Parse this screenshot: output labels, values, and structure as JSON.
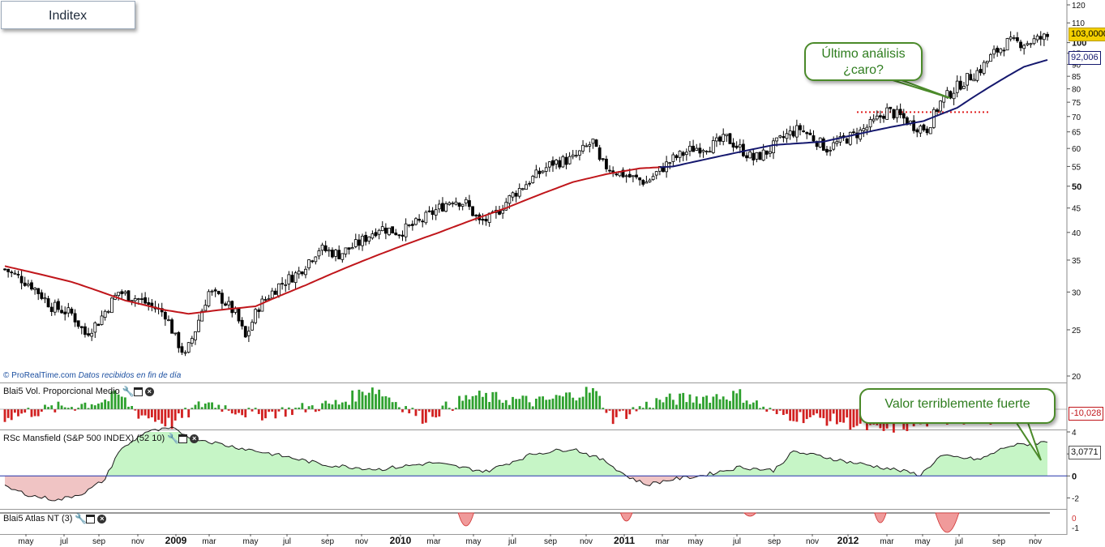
{
  "title": "Inditex",
  "watermark": {
    "brand": "ProRealTime.com",
    "note": "Datos recibidos en fin de día"
  },
  "panels": {
    "volume": {
      "label": "Blai5 Vol. Proporcional Medio",
      "value_tag": "-10,028"
    },
    "rsc": {
      "label": "RSc Mansfield (S&P 500 INDEX) (52 10)",
      "value_tag": "3,0771"
    },
    "atlas": {
      "label": "Blai5 Atlas NT (3)"
    }
  },
  "annotations": {
    "ultimo": {
      "line1": "Último análisis",
      "line2": "¿caro?"
    },
    "fuerte": {
      "text": "Valor terriblemente fuerte"
    }
  },
  "price_tags": {
    "last": "103,0000",
    "ma": "92,006"
  },
  "colors": {
    "up_body": "#ffffff",
    "down_body": "#000000",
    "ma_red": "#c0161b",
    "ma_blue": "#15186e",
    "vol_up": "#2ea12e",
    "vol_down": "#d22020",
    "rsc_pos": "#c6f5c6",
    "rsc_neg": "#f0c4c4",
    "callout_green": "#2f7d1f",
    "resistance": "#e02020"
  },
  "chart_data": {
    "type": "candlestick",
    "x_ticks": [
      "may",
      "jul",
      "sep",
      "nov",
      "2009",
      "mar",
      "may",
      "jul",
      "sep",
      "nov",
      "2010",
      "mar",
      "may",
      "jul",
      "sep",
      "nov",
      "2011",
      "mar",
      "may",
      "jul",
      "sep",
      "nov",
      "2012",
      "mar",
      "may",
      "jul",
      "sep",
      "nov"
    ],
    "y_ticks": [
      20,
      25,
      30,
      35,
      40,
      45,
      50,
      55,
      60,
      65,
      70,
      75,
      80,
      85,
      90,
      95,
      100,
      110,
      120
    ],
    "y_scale": "log",
    "ylim": [
      20,
      120
    ],
    "price_anchors": [
      [
        0,
        33.5
      ],
      [
        8,
        31
      ],
      [
        14,
        28
      ],
      [
        20,
        27
      ],
      [
        24,
        24.5
      ],
      [
        28,
        26
      ],
      [
        34,
        30
      ],
      [
        40,
        29
      ],
      [
        44,
        28
      ],
      [
        48,
        27
      ],
      [
        51,
        24
      ],
      [
        54,
        22
      ],
      [
        57,
        25
      ],
      [
        61,
        30
      ],
      [
        65,
        29
      ],
      [
        69,
        27
      ],
      [
        72,
        24
      ],
      [
        76,
        28
      ],
      [
        82,
        31
      ],
      [
        88,
        33
      ],
      [
        94,
        37
      ],
      [
        100,
        36
      ],
      [
        106,
        38
      ],
      [
        112,
        41
      ],
      [
        118,
        40
      ],
      [
        124,
        42
      ],
      [
        130,
        45
      ],
      [
        134,
        47
      ],
      [
        138,
        46
      ],
      [
        142,
        42
      ],
      [
        146,
        43
      ],
      [
        152,
        48
      ],
      [
        158,
        52
      ],
      [
        164,
        56
      ],
      [
        170,
        57
      ],
      [
        176,
        62
      ],
      [
        178,
        56
      ],
      [
        182,
        54
      ],
      [
        188,
        52
      ],
      [
        192,
        51
      ],
      [
        196,
        54
      ],
      [
        200,
        57
      ],
      [
        206,
        60
      ],
      [
        212,
        61
      ],
      [
        216,
        63
      ],
      [
        220,
        60
      ],
      [
        224,
        57
      ],
      [
        228,
        59
      ],
      [
        234,
        64
      ],
      [
        238,
        66
      ],
      [
        242,
        63
      ],
      [
        246,
        60
      ],
      [
        250,
        62
      ],
      [
        256,
        65
      ],
      [
        260,
        68
      ],
      [
        264,
        72
      ],
      [
        268,
        70
      ],
      [
        272,
        67
      ],
      [
        276,
        66
      ],
      [
        280,
        75
      ],
      [
        286,
        82
      ],
      [
        292,
        88
      ],
      [
        296,
        95
      ],
      [
        300,
        100
      ],
      [
        306,
        100
      ],
      [
        312,
        103
      ]
    ],
    "ma_anchors": [
      [
        0,
        34
      ],
      [
        20,
        31.5
      ],
      [
        36,
        28.8
      ],
      [
        48,
        27.5
      ],
      [
        55,
        27.0
      ],
      [
        64,
        27.5
      ],
      [
        75,
        28
      ],
      [
        90,
        31
      ],
      [
        110,
        35.5
      ],
      [
        130,
        40
      ],
      [
        150,
        45
      ],
      [
        170,
        51
      ],
      [
        180,
        53
      ],
      [
        190,
        54.5
      ],
      [
        200,
        55
      ],
      [
        210,
        57
      ],
      [
        220,
        59
      ],
      [
        230,
        61
      ],
      [
        245,
        62
      ],
      [
        265,
        66.5
      ],
      [
        275,
        68.5
      ],
      [
        285,
        73
      ],
      [
        295,
        81
      ],
      [
        305,
        89
      ],
      [
        312,
        92
      ]
    ],
    "ma_red_until": 196,
    "resistance_level": 71.5,
    "volume_anchors": [
      [
        0,
        -0.5
      ],
      [
        30,
        0.6
      ],
      [
        34,
        1.0
      ],
      [
        40,
        -0.3
      ],
      [
        50,
        -1.0
      ],
      [
        60,
        0.5
      ],
      [
        75,
        -0.4
      ],
      [
        100,
        0.4
      ],
      [
        110,
        1.5
      ],
      [
        125,
        -0.6
      ],
      [
        140,
        0.9
      ],
      [
        160,
        0.5
      ],
      [
        176,
        1.3
      ],
      [
        182,
        -0.6
      ],
      [
        196,
        0.6
      ],
      [
        220,
        1.0
      ],
      [
        230,
        -0.3
      ],
      [
        250,
        -0.8
      ],
      [
        262,
        -1.5
      ],
      [
        280,
        -0.7
      ],
      [
        312,
        -0.5
      ]
    ],
    "rsc_anchors": [
      [
        0,
        -1.0
      ],
      [
        8,
        -1.8
      ],
      [
        16,
        -2.2
      ],
      [
        24,
        -1.5
      ],
      [
        30,
        -0.3
      ],
      [
        34,
        2.2
      ],
      [
        42,
        4.0
      ],
      [
        50,
        4.3
      ],
      [
        56,
        3.5
      ],
      [
        66,
        2.8
      ],
      [
        80,
        2.0
      ],
      [
        96,
        1.0
      ],
      [
        112,
        0.6
      ],
      [
        128,
        1.2
      ],
      [
        144,
        0.4
      ],
      [
        158,
        2.0
      ],
      [
        170,
        2.5
      ],
      [
        180,
        1.3
      ],
      [
        186,
        0
      ],
      [
        192,
        -0.8
      ],
      [
        200,
        -0.3
      ],
      [
        208,
        0
      ],
      [
        220,
        0.8
      ],
      [
        230,
        0.5
      ],
      [
        236,
        2.2
      ],
      [
        244,
        1.8
      ],
      [
        252,
        1.3
      ],
      [
        266,
        0.6
      ],
      [
        274,
        0.1
      ],
      [
        280,
        1.8
      ],
      [
        292,
        1.5
      ],
      [
        300,
        2.7
      ],
      [
        312,
        3.1
      ]
    ],
    "rsc_ylim": [
      -3,
      4
    ],
    "rsc_ticks": [
      4,
      2,
      0,
      -2
    ],
    "atlas_events": [
      [
        138,
        -0.8
      ],
      [
        186,
        -0.5
      ],
      [
        223,
        -0.2
      ],
      [
        262,
        -0.6
      ],
      [
        282,
        -1.2
      ]
    ],
    "atlas_ticks": [
      0,
      -1
    ]
  }
}
